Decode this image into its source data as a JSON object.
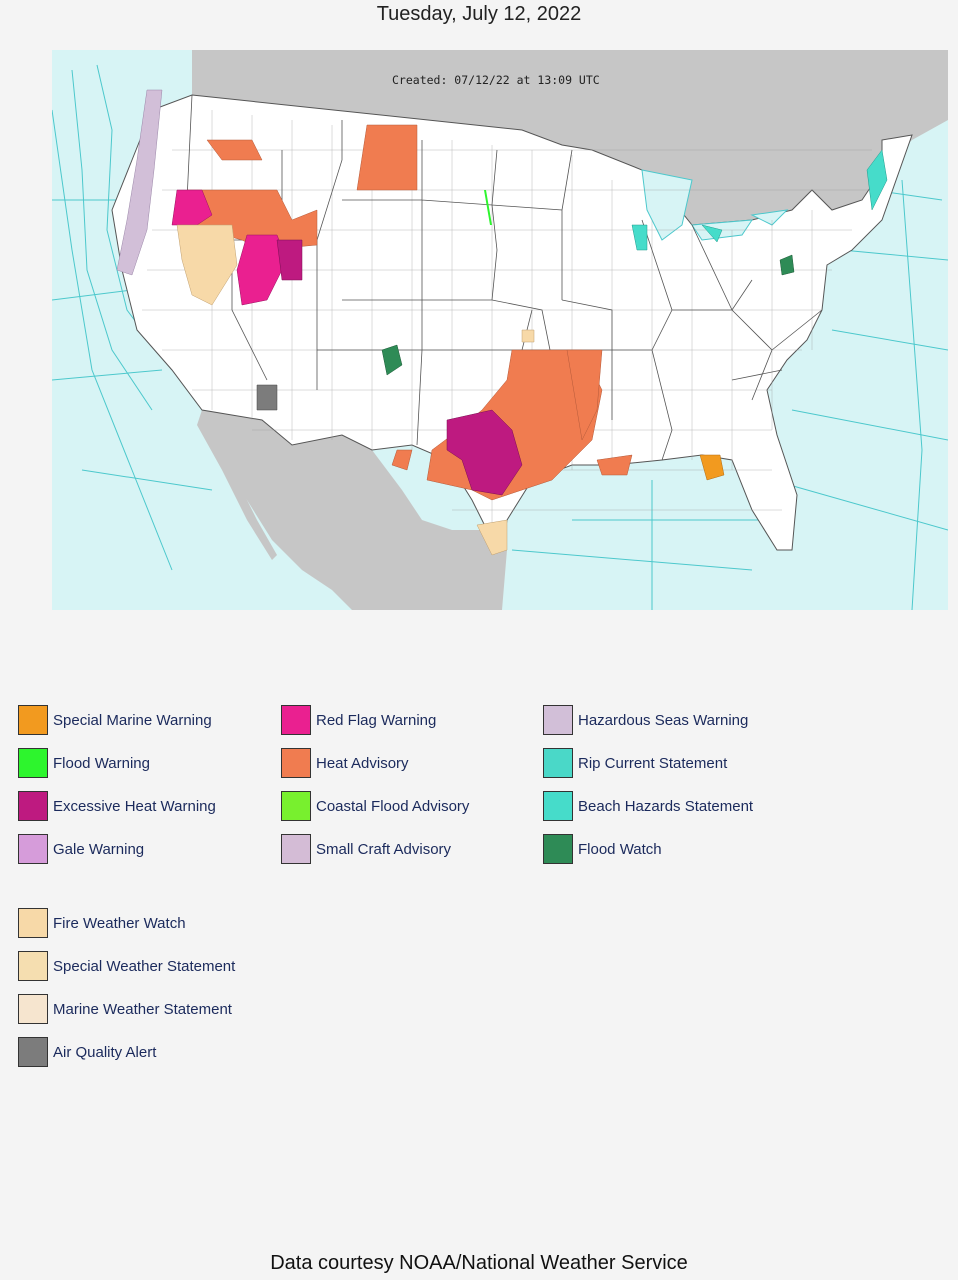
{
  "header": {
    "date": "Tuesday, July 12, 2022"
  },
  "map": {
    "created_stamp": "Created: 07/12/22 at 13:09 UTC",
    "colors": {
      "ocean": "#d7f4f5",
      "land_other": "#c6c6c6",
      "us_land": "#ffffff",
      "county_lines": "#9a9a9a",
      "marine_zone_lines": "#4cc8cc"
    }
  },
  "legend": {
    "items": [
      {
        "label": "Special Marine Warning",
        "color": "#f29a1f"
      },
      {
        "label": "Flood Warning",
        "color": "#2df52d"
      },
      {
        "label": "Excessive Heat Warning",
        "color": "#be1a80"
      },
      {
        "label": "Gale Warning",
        "color": "#d69cda"
      },
      {
        "label": "Red Flag Warning",
        "color": "#ea2090"
      },
      {
        "label": "Heat Advisory",
        "color": "#f07c50"
      },
      {
        "label": "Coastal Flood Advisory",
        "color": "#78f02e"
      },
      {
        "label": "Small Craft Advisory",
        "color": "#d4bcd6"
      },
      {
        "label": "Hazardous Seas Warning",
        "color": "#d2bfd8"
      },
      {
        "label": "Rip Current Statement",
        "color": "#4ad8c8"
      },
      {
        "label": "Beach Hazards Statement",
        "color": "#46dcca"
      },
      {
        "label": "Flood Watch",
        "color": "#2e8b56"
      },
      {
        "label": "Fire Weather Watch",
        "color": "#f7d9a8"
      },
      {
        "label": "Special Weather Statement",
        "color": "#f5deb0"
      },
      {
        "label": "Marine Weather Statement",
        "color": "#f6e5cf"
      },
      {
        "label": "Air Quality Alert",
        "color": "#7c7c7c"
      }
    ]
  },
  "footer": {
    "credit": "Data courtesy NOAA/National Weather Service"
  }
}
